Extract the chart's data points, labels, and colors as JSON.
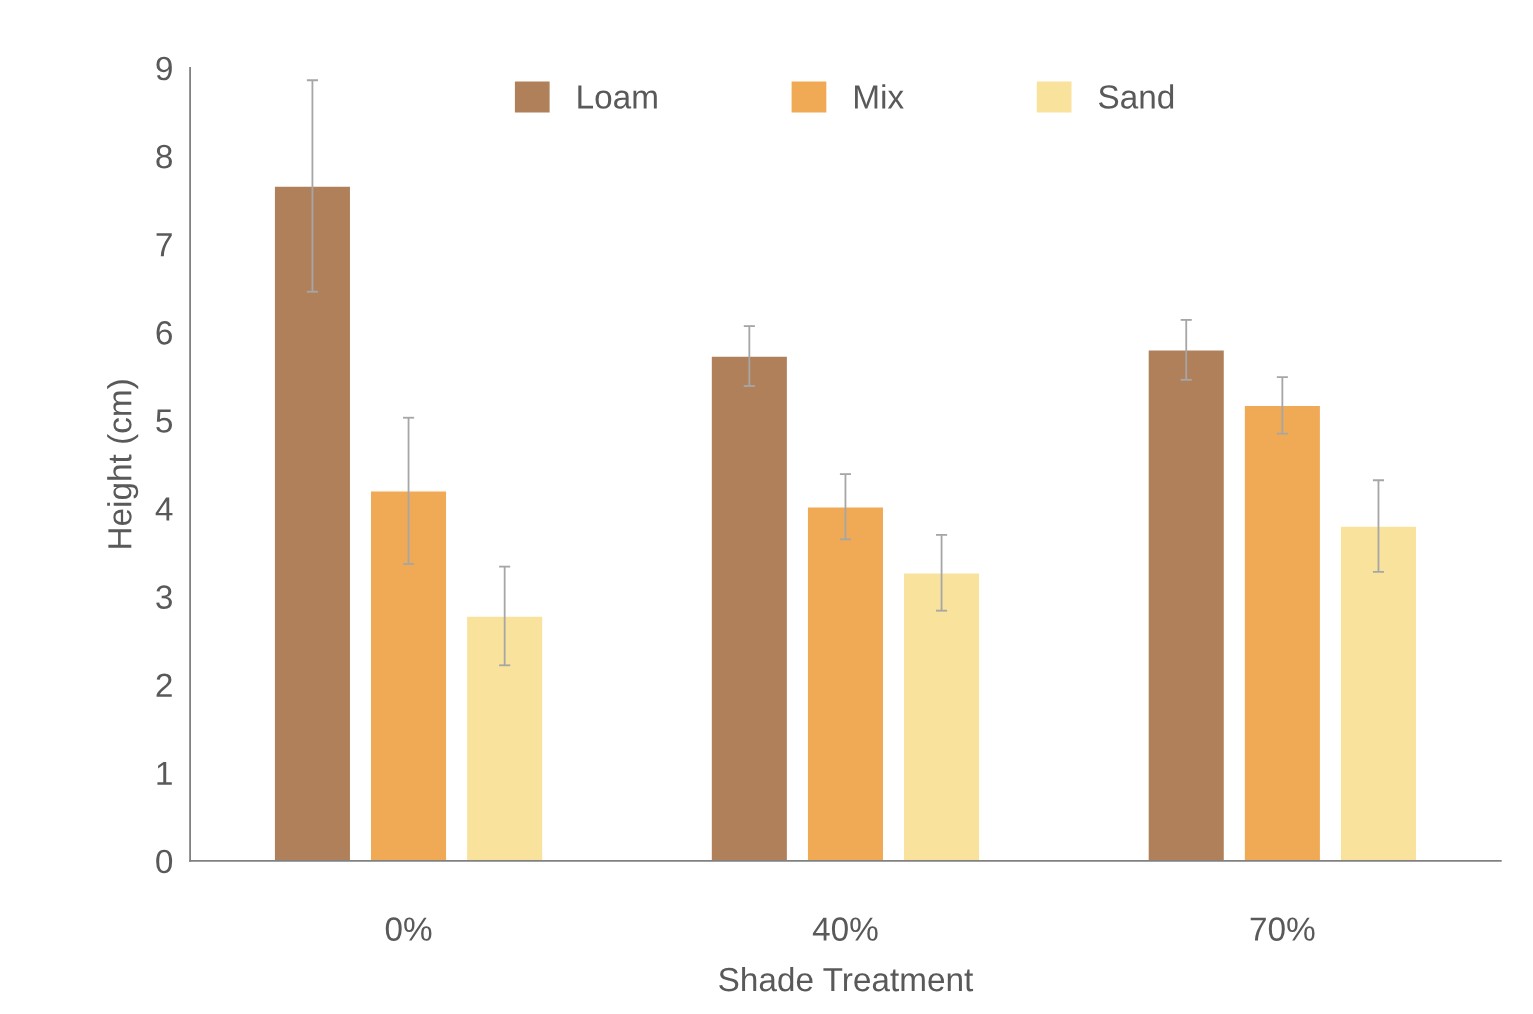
{
  "chart_data": {
    "type": "bar",
    "xlabel": "Shade Treatment",
    "ylabel": "Height (cm)",
    "categories": [
      "0%",
      "40%",
      "70%"
    ],
    "series": [
      {
        "name": "Loam",
        "color": "#b0805a",
        "values": [
          7.66,
          5.73,
          5.8
        ],
        "errors": [
          1.2,
          0.34,
          0.34
        ]
      },
      {
        "name": "Mix",
        "color": "#f0a955",
        "values": [
          4.2,
          4.02,
          5.17
        ],
        "errors": [
          0.83,
          0.37,
          0.32
        ]
      },
      {
        "name": "Sand",
        "color": "#f9e29c",
        "values": [
          2.78,
          3.27,
          3.8
        ],
        "errors": [
          0.56,
          0.43,
          0.52
        ]
      }
    ],
    "ylim": [
      0,
      9
    ],
    "yticks": [
      0,
      1,
      2,
      3,
      4,
      5,
      6,
      7,
      8,
      9
    ],
    "grid": false,
    "legend": "top"
  }
}
